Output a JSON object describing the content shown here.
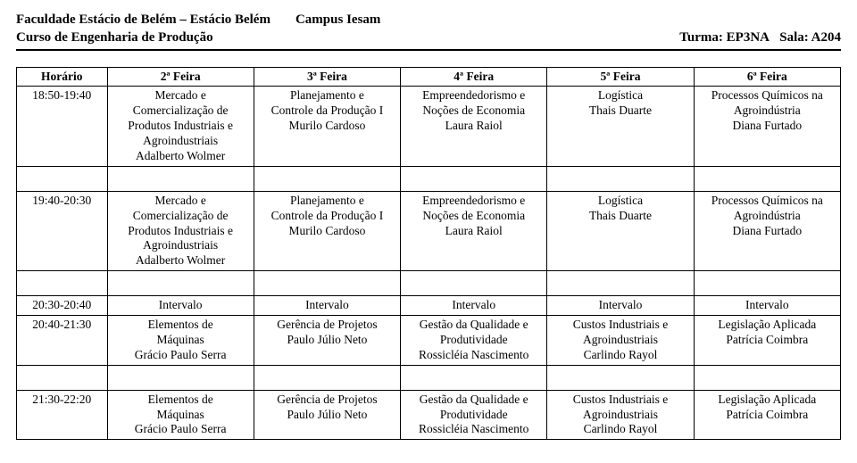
{
  "header": {
    "institution": "Faculdade Estácio de Belém – Estácio Belém",
    "campus": "Campus Iesam",
    "course": "Curso de Engenharia de Produção",
    "class_label": "Turma: EP3NA",
    "room_label": "Sala: A204"
  },
  "table": {
    "columns": [
      "Horário",
      "2ª Feira",
      "3ª Feira",
      "4ª Feira",
      "5ª Feira",
      "6ª Feira"
    ],
    "rows": [
      {
        "time": "18:50-19:40",
        "cells": [
          [
            "Mercado e",
            "Comercialização de",
            "Produtos Industriais e",
            "Agroindustriais",
            "Adalberto Wolmer"
          ],
          [
            "Planejamento e",
            "Controle da Produção I",
            "Murilo Cardoso"
          ],
          [
            "Empreendedorismo e",
            "Noções de Economia",
            "Laura Raiol"
          ],
          [
            "Logística",
            "Thais Duarte"
          ],
          [
            "Processos Químicos na",
            "Agroindústria",
            "Diana Furtado"
          ]
        ],
        "gap_after": true
      },
      {
        "time": "19:40-20:30",
        "cells": [
          [
            "Mercado e",
            "Comercialização de",
            "Produtos Industriais e",
            "Agroindustriais",
            "Adalberto Wolmer"
          ],
          [
            "Planejamento e",
            "Controle da Produção I",
            "Murilo Cardoso"
          ],
          [
            "Empreendedorismo e",
            "Noções de Economia",
            "Laura Raiol"
          ],
          [
            "Logística",
            "Thais Duarte"
          ],
          [
            "Processos Químicos na",
            "Agroindústria",
            "Diana Furtado"
          ]
        ],
        "gap_after": true
      },
      {
        "time": "20:30-20:40",
        "cells": [
          [
            "Intervalo"
          ],
          [
            "Intervalo"
          ],
          [
            "Intervalo"
          ],
          [
            "Intervalo"
          ],
          [
            "Intervalo"
          ]
        ]
      },
      {
        "time": "20:40-21:30",
        "cells": [
          [
            "Elementos de",
            "Máquinas",
            "Grácio Paulo Serra"
          ],
          [
            "Gerência de Projetos",
            "Paulo Júlio Neto"
          ],
          [
            "Gestão da Qualidade e",
            "Produtividade",
            "Rossicléia Nascimento"
          ],
          [
            "Custos Industriais e",
            "Agroindustriais",
            "Carlindo Rayol"
          ],
          [
            "Legislação Aplicada",
            "Patrícia Coimbra"
          ]
        ],
        "gap_after": true
      },
      {
        "time": "21:30-22:20",
        "cells": [
          [
            "Elementos de",
            "Máquinas",
            "Grácio Paulo Serra"
          ],
          [
            "Gerência de Projetos",
            "Paulo Júlio Neto"
          ],
          [
            "Gestão da Qualidade e",
            "Produtividade",
            "Rossicléia Nascimento"
          ],
          [
            "Custos Industriais e",
            "Agroindustriais",
            "Carlindo Rayol"
          ],
          [
            "Legislação Aplicada",
            "Patrícia Coimbra"
          ]
        ]
      }
    ]
  },
  "style": {
    "font_family": "Times New Roman",
    "header_fontsize_pt": 11,
    "body_fontsize_pt": 10,
    "border_color": "#000000",
    "background_color": "#ffffff",
    "text_color": "#000000"
  }
}
